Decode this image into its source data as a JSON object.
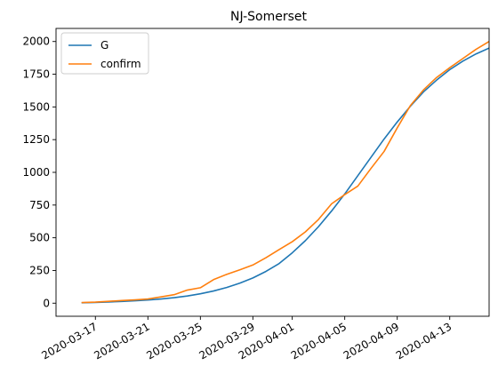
{
  "chart_data": {
    "type": "line",
    "title": "NJ-Somerset",
    "xlabel": "",
    "ylabel": "",
    "x_type": "date",
    "xlim": [
      "2020-03-14",
      "2020-04-16"
    ],
    "ylim": [
      -100,
      2100
    ],
    "x_ticks": [
      "2020-03-17",
      "2020-03-21",
      "2020-03-25",
      "2020-03-29",
      "2020-04-01",
      "2020-04-05",
      "2020-04-09",
      "2020-04-13"
    ],
    "y_ticks": [
      0,
      250,
      500,
      750,
      1000,
      1250,
      1500,
      1750,
      2000
    ],
    "y_tick_labels": [
      "0",
      "250",
      "500",
      "750",
      "1000",
      "1250",
      "1500",
      "1750",
      "2000"
    ],
    "grid": false,
    "legend_position": "top-left",
    "series": [
      {
        "name": "G",
        "color": "#1f77b4",
        "points": [
          [
            "2020-03-16",
            3
          ],
          [
            "2020-03-17",
            6
          ],
          [
            "2020-03-18",
            9
          ],
          [
            "2020-03-19",
            13
          ],
          [
            "2020-03-20",
            18
          ],
          [
            "2020-03-21",
            24
          ],
          [
            "2020-03-22",
            32
          ],
          [
            "2020-03-23",
            42
          ],
          [
            "2020-03-24",
            55
          ],
          [
            "2020-03-25",
            72
          ],
          [
            "2020-03-26",
            93
          ],
          [
            "2020-03-27",
            120
          ],
          [
            "2020-03-28",
            153
          ],
          [
            "2020-03-29",
            193
          ],
          [
            "2020-03-30",
            243
          ],
          [
            "2020-03-31",
            303
          ],
          [
            "2020-04-01",
            385
          ],
          [
            "2020-04-02",
            478
          ],
          [
            "2020-04-03",
            585
          ],
          [
            "2020-04-04",
            705
          ],
          [
            "2020-04-05",
            835
          ],
          [
            "2020-04-06",
            975
          ],
          [
            "2020-04-07",
            1115
          ],
          [
            "2020-04-08",
            1255
          ],
          [
            "2020-04-09",
            1385
          ],
          [
            "2020-04-10",
            1505
          ],
          [
            "2020-04-11",
            1615
          ],
          [
            "2020-04-12",
            1705
          ],
          [
            "2020-04-13",
            1785
          ],
          [
            "2020-04-14",
            1850
          ],
          [
            "2020-04-15",
            1905
          ],
          [
            "2020-04-16",
            1950
          ]
        ]
      },
      {
        "name": "confirm",
        "color": "#ff7f0e",
        "points": [
          [
            "2020-03-16",
            5
          ],
          [
            "2020-03-17",
            8
          ],
          [
            "2020-03-18",
            14
          ],
          [
            "2020-03-19",
            20
          ],
          [
            "2020-03-20",
            25
          ],
          [
            "2020-03-21",
            32
          ],
          [
            "2020-03-22",
            48
          ],
          [
            "2020-03-23",
            65
          ],
          [
            "2020-03-24",
            100
          ],
          [
            "2020-03-25",
            118
          ],
          [
            "2020-03-26",
            180
          ],
          [
            "2020-03-27",
            220
          ],
          [
            "2020-03-28",
            255
          ],
          [
            "2020-03-29",
            292
          ],
          [
            "2020-03-30",
            348
          ],
          [
            "2020-03-31",
            410
          ],
          [
            "2020-04-01",
            470
          ],
          [
            "2020-04-02",
            545
          ],
          [
            "2020-04-03",
            640
          ],
          [
            "2020-04-04",
            760
          ],
          [
            "2020-04-05",
            830
          ],
          [
            "2020-04-06",
            895
          ],
          [
            "2020-04-07",
            1030
          ],
          [
            "2020-04-08",
            1160
          ],
          [
            "2020-04-09",
            1340
          ],
          [
            "2020-04-10",
            1510
          ],
          [
            "2020-04-11",
            1630
          ],
          [
            "2020-04-12",
            1725
          ],
          [
            "2020-04-13",
            1800
          ],
          [
            "2020-04-14",
            1870
          ],
          [
            "2020-04-15",
            1940
          ],
          [
            "2020-04-16",
            2000
          ]
        ]
      }
    ]
  }
}
